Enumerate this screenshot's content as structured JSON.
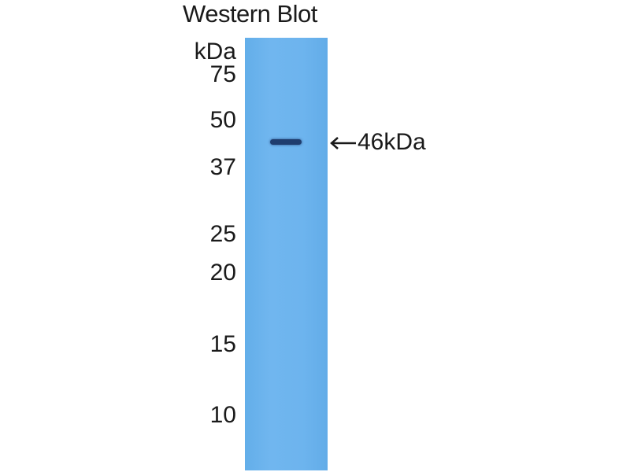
{
  "title": "Western Blot",
  "unit_label": "kDa",
  "markers": [
    "75",
    "50",
    "37",
    "25",
    "20",
    "15",
    "10"
  ],
  "band_label": "46kDa",
  "colors": {
    "membrane": "#6cb4ee",
    "band": "#1f3d6e"
  },
  "icons": {
    "arrow": "arrow-left-icon"
  }
}
